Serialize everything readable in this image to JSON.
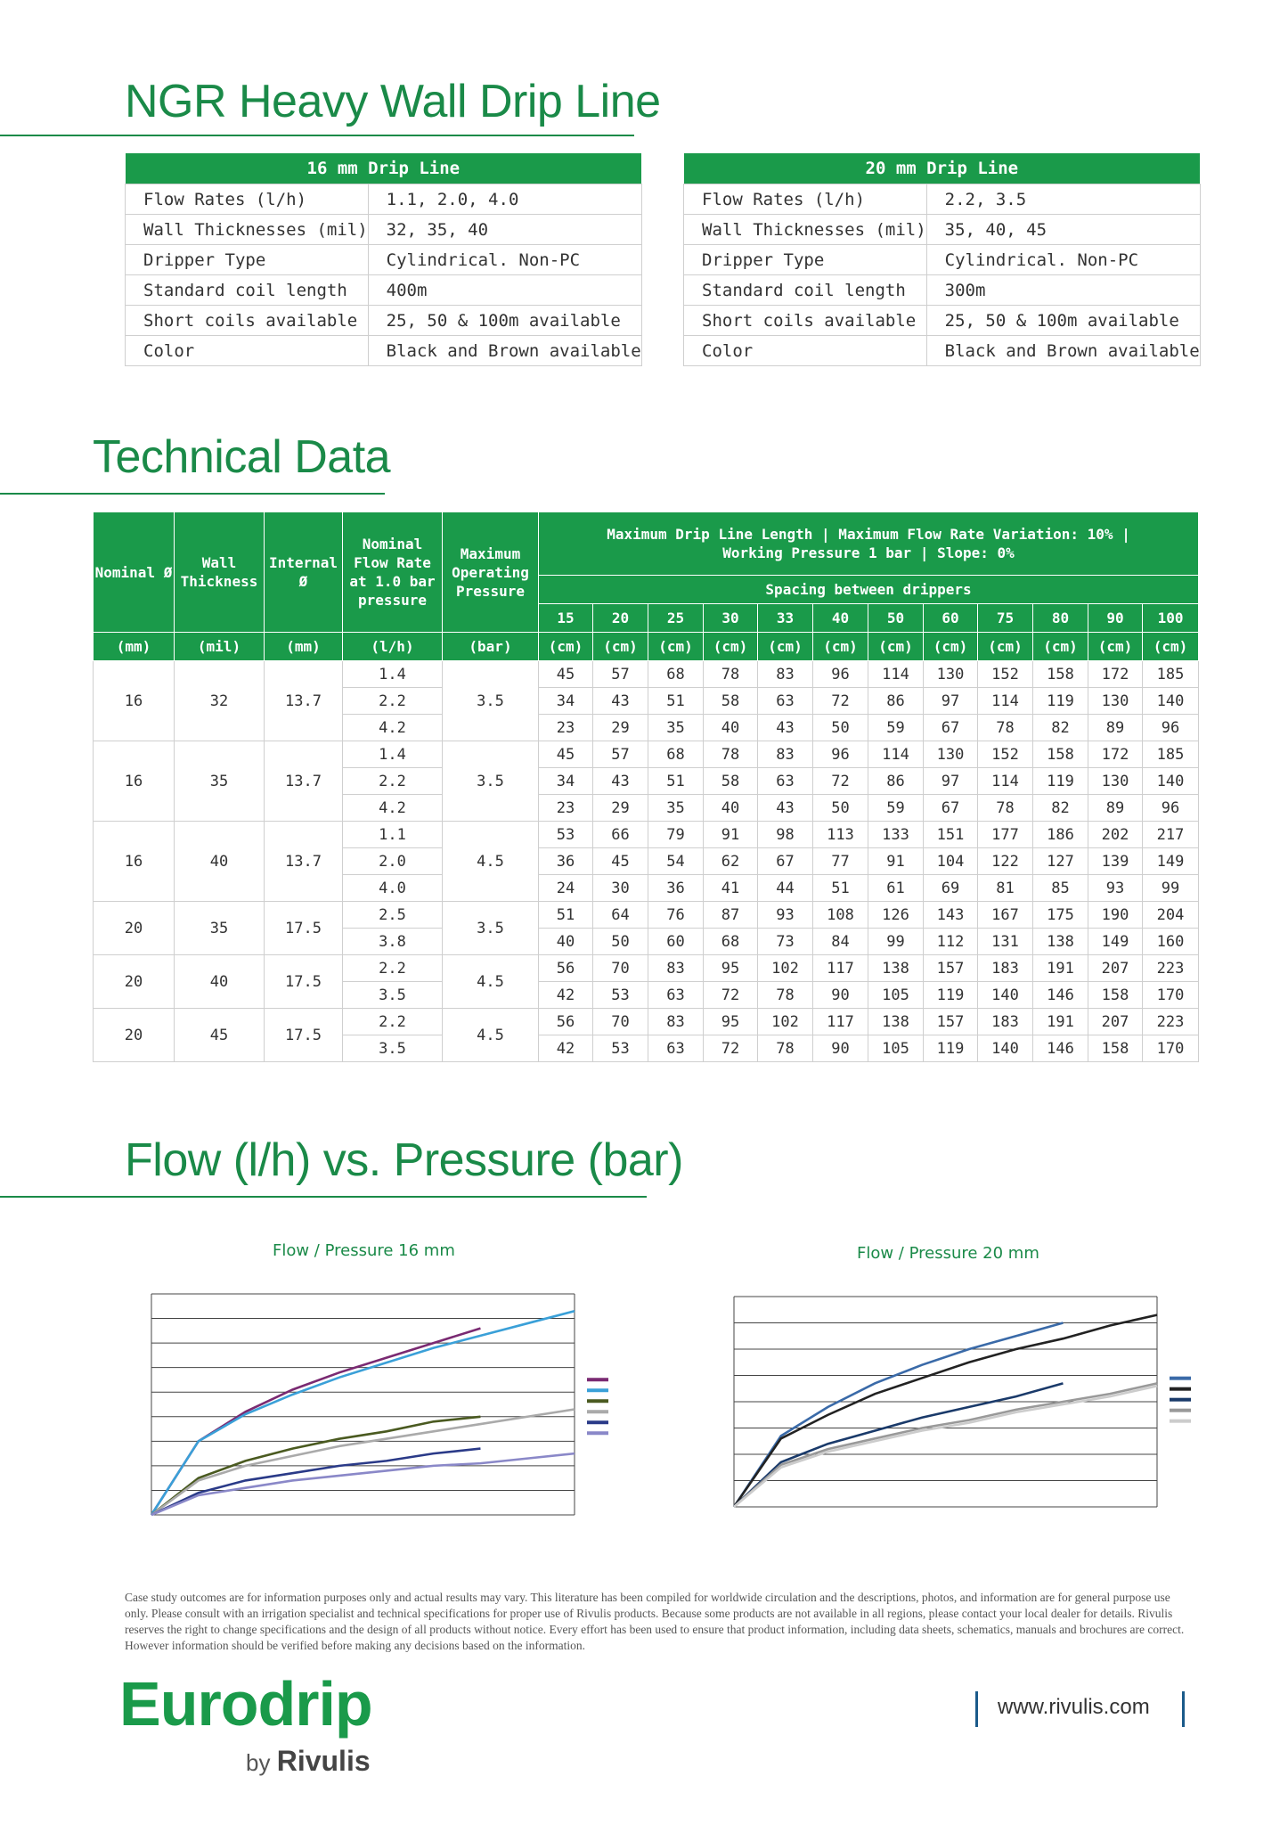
{
  "heading": "NGR Heavy Wall Drip Line",
  "table16": {
    "title": "16 mm Drip Line",
    "rows": [
      [
        "Flow Rates (l/h)",
        "1.1, 2.0, 4.0"
      ],
      [
        "Wall Thicknesses (mil)",
        "32, 35, 40"
      ],
      [
        "Dripper Type",
        "Cylindrical. Non-PC"
      ],
      [
        "Standard coil length",
        "400m"
      ],
      [
        "Short coils available",
        "25, 50 & 100m available"
      ],
      [
        "Color",
        "Black and Brown available"
      ]
    ]
  },
  "table20": {
    "title": "20 mm Drip Line",
    "rows": [
      [
        "Flow Rates (l/h)",
        "2.2, 3.5"
      ],
      [
        "Wall Thicknesses (mil)",
        "35, 40, 45"
      ],
      [
        "Dripper Type",
        "Cylindrical. Non-PC"
      ],
      [
        "Standard coil length",
        "300m"
      ],
      [
        "Short coils available",
        "25, 50 & 100m available"
      ],
      [
        "Color",
        "Black and Brown available"
      ]
    ]
  },
  "tech": {
    "title": "Technical Data",
    "headers": {
      "nominal": "Nominal Ø",
      "wall": "Wall Thickness",
      "internal": "Internal Ø",
      "flow": "Nominal Flow Rate at 1.0 bar pressure",
      "pressure": "Maximum Operating Pressure",
      "maxlen1": "Maximum Drip Line Length | Maximum Flow Rate Variation: 10% |",
      "maxlen2": "Working Pressure 1 bar | Slope: 0%",
      "spacing": "Spacing between drippers"
    },
    "spacings": [
      "15",
      "20",
      "25",
      "30",
      "33",
      "40",
      "50",
      "60",
      "75",
      "80",
      "90",
      "100"
    ],
    "units": [
      "(mm)",
      "(mil)",
      "(mm)",
      "(l/h)",
      "(bar)",
      "(cm)",
      "(cm)",
      "(cm)",
      "(cm)",
      "(cm)",
      "(cm)",
      "(cm)",
      "(cm)",
      "(cm)",
      "(cm)",
      "(cm)",
      "(cm)"
    ],
    "groups": [
      {
        "nominal": "16",
        "wall": "32",
        "internal": "13.7",
        "pressure": "3.5",
        "rows": [
          {
            "flow": "1.4",
            "v": [
              "45",
              "57",
              "68",
              "78",
              "83",
              "96",
              "114",
              "130",
              "152",
              "158",
              "172",
              "185"
            ]
          },
          {
            "flow": "2.2",
            "v": [
              "34",
              "43",
              "51",
              "58",
              "63",
              "72",
              "86",
              "97",
              "114",
              "119",
              "130",
              "140"
            ]
          },
          {
            "flow": "4.2",
            "v": [
              "23",
              "29",
              "35",
              "40",
              "43",
              "50",
              "59",
              "67",
              "78",
              "82",
              "89",
              "96"
            ]
          }
        ]
      },
      {
        "nominal": "16",
        "wall": "35",
        "internal": "13.7",
        "pressure": "3.5",
        "rows": [
          {
            "flow": "1.4",
            "v": [
              "45",
              "57",
              "68",
              "78",
              "83",
              "96",
              "114",
              "130",
              "152",
              "158",
              "172",
              "185"
            ]
          },
          {
            "flow": "2.2",
            "v": [
              "34",
              "43",
              "51",
              "58",
              "63",
              "72",
              "86",
              "97",
              "114",
              "119",
              "130",
              "140"
            ]
          },
          {
            "flow": "4.2",
            "v": [
              "23",
              "29",
              "35",
              "40",
              "43",
              "50",
              "59",
              "67",
              "78",
              "82",
              "89",
              "96"
            ]
          }
        ]
      },
      {
        "nominal": "16",
        "wall": "40",
        "internal": "13.7",
        "pressure": "4.5",
        "rows": [
          {
            "flow": "1.1",
            "v": [
              "53",
              "66",
              "79",
              "91",
              "98",
              "113",
              "133",
              "151",
              "177",
              "186",
              "202",
              "217"
            ]
          },
          {
            "flow": "2.0",
            "v": [
              "36",
              "45",
              "54",
              "62",
              "67",
              "77",
              "91",
              "104",
              "122",
              "127",
              "139",
              "149"
            ]
          },
          {
            "flow": "4.0",
            "v": [
              "24",
              "30",
              "36",
              "41",
              "44",
              "51",
              "61",
              "69",
              "81",
              "85",
              "93",
              "99"
            ]
          }
        ]
      },
      {
        "nominal": "20",
        "wall": "35",
        "internal": "17.5",
        "pressure": "3.5",
        "rows": [
          {
            "flow": "2.5",
            "v": [
              "51",
              "64",
              "76",
              "87",
              "93",
              "108",
              "126",
              "143",
              "167",
              "175",
              "190",
              "204"
            ]
          },
          {
            "flow": "3.8",
            "v": [
              "40",
              "50",
              "60",
              "68",
              "73",
              "84",
              "99",
              "112",
              "131",
              "138",
              "149",
              "160"
            ]
          }
        ]
      },
      {
        "nominal": "20",
        "wall": "40",
        "internal": "17.5",
        "pressure": "4.5",
        "rows": [
          {
            "flow": "2.2",
            "v": [
              "56",
              "70",
              "83",
              "95",
              "102",
              "117",
              "138",
              "157",
              "183",
              "191",
              "207",
              "223"
            ]
          },
          {
            "flow": "3.5",
            "v": [
              "42",
              "53",
              "63",
              "72",
              "78",
              "90",
              "105",
              "119",
              "140",
              "146",
              "158",
              "170"
            ]
          }
        ]
      },
      {
        "nominal": "20",
        "wall": "45",
        "internal": "17.5",
        "pressure": "4.5",
        "rows": [
          {
            "flow": "2.2",
            "v": [
              "56",
              "70",
              "83",
              "95",
              "102",
              "117",
              "138",
              "157",
              "183",
              "191",
              "207",
              "223"
            ]
          },
          {
            "flow": "3.5",
            "v": [
              "42",
              "53",
              "63",
              "72",
              "78",
              "90",
              "105",
              "119",
              "140",
              "146",
              "158",
              "170"
            ]
          }
        ]
      }
    ]
  },
  "flow_heading": "Flow (l/h) vs. Pressure (bar)",
  "chart_data": [
    {
      "type": "line",
      "title": "Flow / Pressure 16 mm",
      "ylim": [
        0,
        9
      ],
      "xlim": [
        0,
        4.5
      ],
      "series": [
        {
          "color": "#7a2a72",
          "x": [
            0,
            0.5,
            1,
            1.5,
            2,
            2.5,
            3,
            3.5
          ],
          "y": [
            0,
            3.0,
            4.2,
            5.1,
            5.8,
            6.4,
            7.0,
            7.6
          ]
        },
        {
          "color": "#3aa0d8",
          "x": [
            0,
            0.5,
            1,
            1.5,
            2,
            2.5,
            3,
            3.5,
            4,
            4.5
          ],
          "y": [
            0,
            3.0,
            4.1,
            4.9,
            5.6,
            6.2,
            6.8,
            7.3,
            7.8,
            8.3
          ]
        },
        {
          "color": "#4a5a20",
          "x": [
            0,
            0.5,
            1,
            1.5,
            2,
            2.5,
            3,
            3.5
          ],
          "y": [
            0,
            1.5,
            2.2,
            2.7,
            3.1,
            3.4,
            3.8,
            4.0
          ]
        },
        {
          "color": "#aaaaaa",
          "x": [
            0,
            0.5,
            1,
            1.5,
            2,
            2.5,
            3,
            3.5,
            4,
            4.5
          ],
          "y": [
            0,
            1.4,
            2.0,
            2.4,
            2.8,
            3.1,
            3.4,
            3.7,
            4.0,
            4.3
          ]
        },
        {
          "color": "#2a3a88",
          "x": [
            0,
            0.5,
            1,
            1.5,
            2,
            2.5,
            3,
            3.5
          ],
          "y": [
            0,
            0.9,
            1.4,
            1.7,
            2.0,
            2.2,
            2.5,
            2.7
          ]
        },
        {
          "color": "#8a88c8",
          "x": [
            0,
            0.5,
            1,
            1.5,
            2,
            2.5,
            3,
            3.5,
            4,
            4.5
          ],
          "y": [
            0,
            0.8,
            1.1,
            1.4,
            1.6,
            1.8,
            2.0,
            2.1,
            2.3,
            2.5
          ]
        }
      ]
    },
    {
      "type": "line",
      "title": "Flow / Pressure 20 mm",
      "ylim": [
        0,
        8
      ],
      "xlim": [
        0,
        4.5
      ],
      "series": [
        {
          "color": "#3a6aa8",
          "x": [
            0,
            0.5,
            1,
            1.5,
            2,
            2.5,
            3,
            3.5
          ],
          "y": [
            0,
            2.7,
            3.8,
            4.7,
            5.4,
            6.0,
            6.5,
            7.0
          ]
        },
        {
          "color": "#222222",
          "x": [
            0,
            0.5,
            1,
            1.5,
            2,
            2.5,
            3,
            3.5,
            4,
            4.5
          ],
          "y": [
            0,
            2.6,
            3.5,
            4.3,
            4.9,
            5.5,
            6.0,
            6.4,
            6.9,
            7.3
          ]
        },
        {
          "color": "#1a3a6a",
          "x": [
            0,
            0.5,
            1,
            1.5,
            2,
            2.5,
            3,
            3.5
          ],
          "y": [
            0,
            1.7,
            2.4,
            2.9,
            3.4,
            3.8,
            4.2,
            4.7
          ]
        },
        {
          "color": "#999999",
          "x": [
            0,
            0.5,
            1,
            1.5,
            2,
            2.5,
            3,
            3.5,
            4,
            4.5
          ],
          "y": [
            0,
            1.6,
            2.2,
            2.6,
            3.0,
            3.3,
            3.7,
            4.0,
            4.3,
            4.7
          ]
        },
        {
          "color": "#cccccc",
          "x": [
            0,
            0.5,
            1,
            1.5,
            2,
            2.5,
            3,
            3.5,
            4,
            4.5
          ],
          "y": [
            0,
            1.5,
            2.1,
            2.5,
            2.9,
            3.2,
            3.6,
            3.9,
            4.2,
            4.6
          ]
        }
      ]
    }
  ],
  "disclaimer": "Case study outcomes are for information purposes only and actual results may vary. This literature has been compiled for worldwide circulation and the descriptions, photos, and information are for general purpose use only. Please consult with an irrigation specialist and technical specifications for proper use of Rivulis products. Because some products are not available in all regions, please contact your local dealer for details. Rivulis reserves the right to change specifications and the design of all products without notice. Every effort has been used to ensure that product information, including data sheets, schematics, manuals and brochures are correct. However information should be verified before making any decisions based on the information.",
  "logo": {
    "brand": "Eurodrip",
    "by": "by",
    "company": "Rivulis"
  },
  "url": "www.rivulis.com"
}
